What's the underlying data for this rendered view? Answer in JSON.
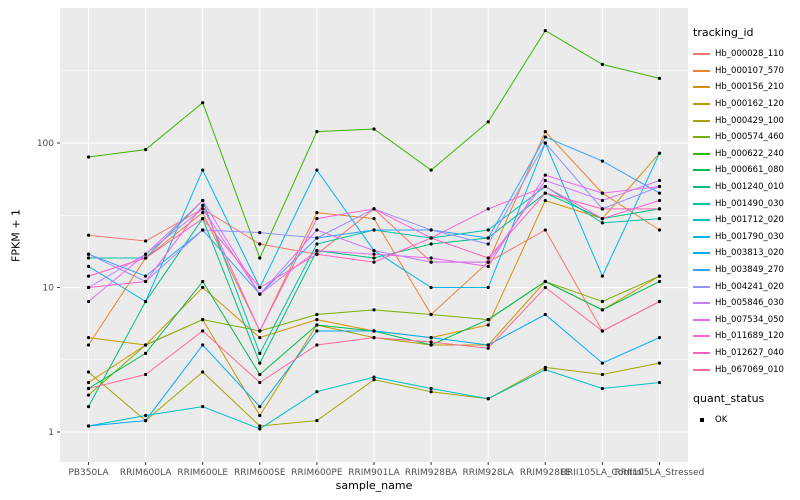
{
  "chart_data": {
    "type": "line",
    "title": "",
    "xlabel": "sample_name",
    "ylabel": "FPKM + 1",
    "y_scale": "log10",
    "y_ticks": [
      1,
      10,
      100
    ],
    "y_minor": [
      3.1623,
      31.623,
      316.23
    ],
    "y_domain": [
      0.62,
      860
    ],
    "panel_bg": "#EBEBEB",
    "grid_color": "#FFFFFF",
    "point_color": "#000000",
    "legend_position": "right",
    "categories": [
      "PB350LA",
      "RRIM600LA",
      "RRIM600LE",
      "RRIM600SE",
      "RRIM600PE",
      "RRIM901LA",
      "RRIM928BA",
      "RRIM928LA",
      "RRIM928LE",
      "RRII105LA_Control",
      "RRII105LA_Stressed"
    ],
    "series": [
      {
        "name": "Hb_000028_110",
        "color": "#F8766D",
        "values": [
          23,
          21,
          35,
          20,
          17,
          35,
          15,
          15,
          25,
          5,
          8
        ]
      },
      {
        "name": "Hb_000107_570",
        "color": "#EA8331",
        "values": [
          4,
          16,
          33,
          5,
          33,
          30,
          6.5,
          15,
          120,
          45,
          25
        ]
      },
      {
        "name": "Hb_000156_210",
        "color": "#D89000",
        "values": [
          2.2,
          4,
          10,
          4.5,
          6,
          5,
          4.5,
          5.5,
          40,
          30,
          85
        ]
      },
      {
        "name": "Hb_000162_120",
        "color": "#C09B00",
        "values": [
          4.5,
          4,
          6,
          1.3,
          5.5,
          4.5,
          4,
          4,
          11,
          7,
          12
        ]
      },
      {
        "name": "Hb_000429_100",
        "color": "#A3A500",
        "values": [
          2.6,
          1.2,
          2.6,
          1.1,
          1.2,
          2.3,
          1.9,
          1.7,
          2.8,
          2.5,
          3
        ]
      },
      {
        "name": "Hb_000574_460",
        "color": "#7CAE00",
        "values": [
          1.8,
          4,
          6,
          5,
          6.5,
          7,
          6.5,
          6,
          11,
          8,
          12
        ]
      },
      {
        "name": "Hb_000622_240",
        "color": "#39B600",
        "values": [
          80,
          90,
          190,
          16,
          120,
          125,
          65,
          140,
          600,
          350,
          280
        ]
      },
      {
        "name": "Hb_000661_080",
        "color": "#00BB4E",
        "values": [
          2,
          3.5,
          11,
          2.5,
          5.5,
          5,
          4,
          6,
          11,
          7,
          11
        ]
      },
      {
        "name": "Hb_001240_010",
        "color": "#00BF7D",
        "values": [
          1.5,
          8,
          30,
          3,
          18,
          16,
          20,
          22,
          45,
          30,
          35
        ]
      },
      {
        "name": "Hb_001490_030",
        "color": "#00C1A3",
        "values": [
          16,
          16,
          40,
          3.5,
          20,
          25,
          22,
          25,
          50,
          28,
          30
        ]
      },
      {
        "name": "Hb_001712_020",
        "color": "#00BFC4",
        "values": [
          1.1,
          1.3,
          1.5,
          1.05,
          1.9,
          2.4,
          2,
          1.7,
          2.7,
          2,
          2.2
        ]
      },
      {
        "name": "Hb_001790_030",
        "color": "#00B8E7",
        "values": [
          14,
          8,
          65,
          10,
          65,
          18,
          10,
          10,
          100,
          12,
          85
        ]
      },
      {
        "name": "Hb_003813_020",
        "color": "#00ACFC",
        "values": [
          1.1,
          1.2,
          4,
          1.5,
          5,
          5,
          4.5,
          4,
          6.5,
          3,
          4.5
        ]
      },
      {
        "name": "Hb_003849_270",
        "color": "#35A2FF",
        "values": [
          17,
          12,
          25,
          9,
          22,
          25,
          25,
          22,
          110,
          75,
          45
        ]
      },
      {
        "name": "Hb_004241_020",
        "color": "#9590FF",
        "values": [
          17,
          11,
          25,
          24,
          22,
          35,
          25,
          20,
          100,
          35,
          50
        ]
      },
      {
        "name": "Hb_005846_030",
        "color": "#C77CFF",
        "values": [
          10,
          17,
          35,
          9,
          25,
          18,
          15,
          15,
          55,
          40,
          55
        ]
      },
      {
        "name": "Hb_007534_050",
        "color": "#E76BF3",
        "values": [
          8,
          17,
          40,
          9,
          18,
          17,
          16,
          14,
          60,
          45,
          50
        ]
      },
      {
        "name": "Hb_011689_120",
        "color": "#FA62DB",
        "values": [
          10,
          11,
          37,
          5,
          30,
          35,
          22,
          35,
          50,
          30,
          40
        ]
      },
      {
        "name": "Hb_012627_040",
        "color": "#FF62BC",
        "values": [
          12,
          16,
          30,
          10,
          17,
          15,
          22,
          16,
          45,
          35,
          35
        ]
      },
      {
        "name": "Hb_067069_010",
        "color": "#FF6A98",
        "values": [
          2,
          2.5,
          5,
          2.2,
          4,
          4.5,
          4.2,
          3.8,
          10,
          5,
          8
        ]
      }
    ],
    "legend_tracking": {
      "title": "tracking_id"
    },
    "legend_quant": {
      "title": "quant_status",
      "items": [
        {
          "label": "OK",
          "color": "#000000",
          "marker": "point"
        }
      ]
    }
  }
}
